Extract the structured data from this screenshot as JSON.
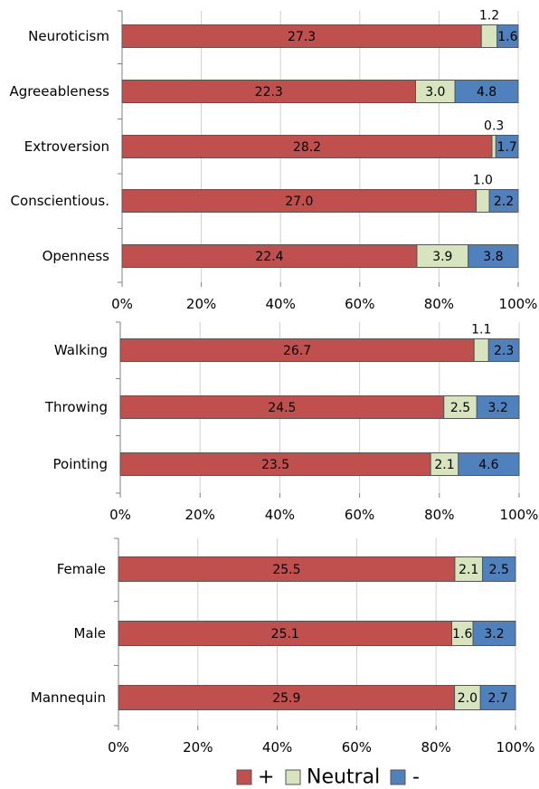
{
  "colors": {
    "plus": "#c0504d",
    "neutral": "#d7e4bd",
    "minus": "#4f81bd",
    "grid": "#d0d0d0",
    "axis": "#808080",
    "border": "#555555"
  },
  "legend": {
    "items": [
      {
        "label": "+",
        "color_key": "plus"
      },
      {
        "label": "Neutral",
        "color_key": "neutral"
      },
      {
        "label": "-",
        "color_key": "minus"
      }
    ]
  },
  "chart_data": [
    {
      "type": "bar",
      "orientation": "horizontal",
      "stacked": "percent",
      "xlim": [
        0,
        100
      ],
      "xticks": [
        "0%",
        "20%",
        "40%",
        "60%",
        "80%",
        "100%"
      ],
      "grid": true,
      "categories": [
        "Neuroticism",
        "Agreeableness",
        "Extroversion",
        "Conscientious.",
        "Openness"
      ],
      "series": [
        {
          "name": "+",
          "values": [
            27.3,
            22.3,
            28.2,
            27.0,
            22.4
          ]
        },
        {
          "name": "Neutral",
          "values": [
            1.2,
            3.0,
            0.3,
            1.0,
            3.9
          ]
        },
        {
          "name": "-",
          "values": [
            1.6,
            4.8,
            1.7,
            2.2,
            3.8
          ]
        }
      ]
    },
    {
      "type": "bar",
      "orientation": "horizontal",
      "stacked": "percent",
      "xlim": [
        0,
        100
      ],
      "xticks": [
        "0%",
        "20%",
        "40%",
        "60%",
        "80%",
        "100%"
      ],
      "grid": true,
      "categories": [
        "Walking",
        "Throwing",
        "Pointing"
      ],
      "series": [
        {
          "name": "+",
          "values": [
            26.7,
            24.5,
            23.5
          ]
        },
        {
          "name": "Neutral",
          "values": [
            1.1,
            2.5,
            2.1
          ]
        },
        {
          "name": "-",
          "values": [
            2.3,
            3.2,
            4.6
          ]
        }
      ]
    },
    {
      "type": "bar",
      "orientation": "horizontal",
      "stacked": "percent",
      "xlim": [
        0,
        100
      ],
      "xticks": [
        "0%",
        "20%",
        "40%",
        "60%",
        "80%",
        "100%"
      ],
      "grid": true,
      "categories": [
        "Female",
        "Male",
        "Mannequin"
      ],
      "series": [
        {
          "name": "+",
          "values": [
            25.5,
            25.1,
            25.9
          ]
        },
        {
          "name": "Neutral",
          "values": [
            2.1,
            1.6,
            2.0
          ]
        },
        {
          "name": "-",
          "values": [
            2.5,
            3.2,
            2.7
          ]
        }
      ]
    }
  ]
}
